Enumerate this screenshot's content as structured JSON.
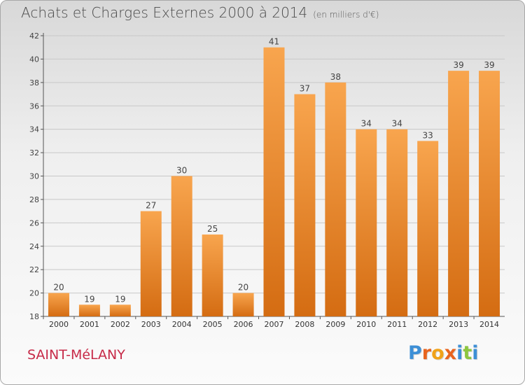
{
  "title": "Achats et Charges Externes 2000 à 2014",
  "subtitle": "(en milliers d'€)",
  "commune": "SAINT-MéLANY",
  "brand": {
    "text": "Proxiti",
    "letter_colors": [
      "#3d8fd6",
      "#e8641e",
      "#f0a21a",
      "#e8641e",
      "#3d8fd6",
      "#8cc63f",
      "#3d8fd6"
    ]
  },
  "colors": {
    "bar_light": "#f8a54e",
    "bar_dark": "#d46c12",
    "title": "#4a4a4a",
    "commune": "#c72a48"
  },
  "chart_data": {
    "type": "bar",
    "title": "Achats et Charges Externes 2000 à 2014",
    "subtitle": "(en milliers d'€)",
    "categories": [
      "2000",
      "2001",
      "2002",
      "2003",
      "2004",
      "2005",
      "2006",
      "2007",
      "2008",
      "2009",
      "2010",
      "2011",
      "2012",
      "2013",
      "2014"
    ],
    "values": [
      20,
      19,
      19,
      27,
      30,
      25,
      20,
      41,
      37,
      38,
      34,
      34,
      33,
      39,
      39
    ],
    "ylim": [
      18,
      42
    ],
    "yticks": [
      18,
      20,
      22,
      24,
      26,
      28,
      30,
      32,
      34,
      36,
      38,
      40,
      42
    ],
    "xlabel": "",
    "ylabel": "",
    "grid": true,
    "data_labels": true
  }
}
